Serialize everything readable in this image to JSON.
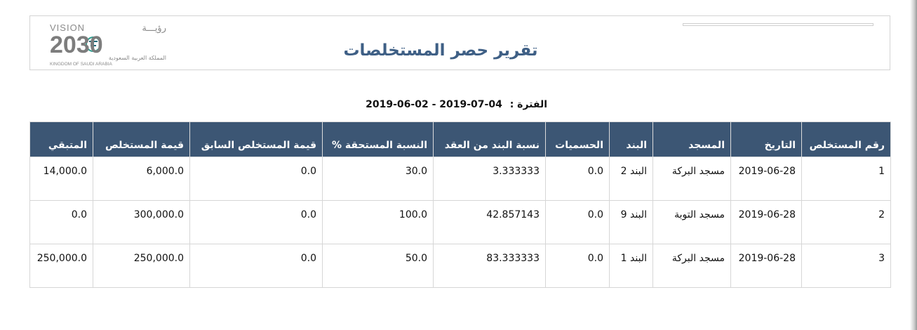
{
  "header": {
    "title": "تقرير حصر المستخلصات",
    "logo": {
      "vision_text": "VISION",
      "ruya_text": "رؤيـــة",
      "year_text": "2030",
      "kingdom_ar": "المملكة العربية السعودية",
      "kingdom_en": "KINGDOM OF SAUDI ARABIA"
    }
  },
  "period": {
    "label": "الفترة :",
    "value": "2019-06-02 - 2019-07-04"
  },
  "table": {
    "columns": [
      "رقم المستخلص",
      "التاريخ",
      "المسجد",
      "البند",
      "الحسميات",
      "نسبة البند من العقد",
      "النسبة المستحقة %",
      "قيمة المستخلص السابق",
      "قيمة المستخلص",
      "المتبقي"
    ],
    "rows": [
      [
        "1",
        "2019-06-28",
        "مسجد البركة",
        "البند 2",
        "0.0",
        "3.333333",
        "30.0",
        "0.0",
        "6,000.0",
        "14,000.0"
      ],
      [
        "2",
        "2019-06-28",
        "مسجد التوبة",
        "البند 9",
        "0.0",
        "42.857143",
        "100.0",
        "0.0",
        "300,000.0",
        "0.0"
      ],
      [
        "3",
        "2019-06-28",
        "مسجد البركة",
        "البند 1",
        "0.0",
        "83.333333",
        "50.0",
        "0.0",
        "250,000.0",
        "250,000.0"
      ]
    ]
  },
  "colors": {
    "header_bg": "#3c5674",
    "title": "#3e5f85"
  }
}
